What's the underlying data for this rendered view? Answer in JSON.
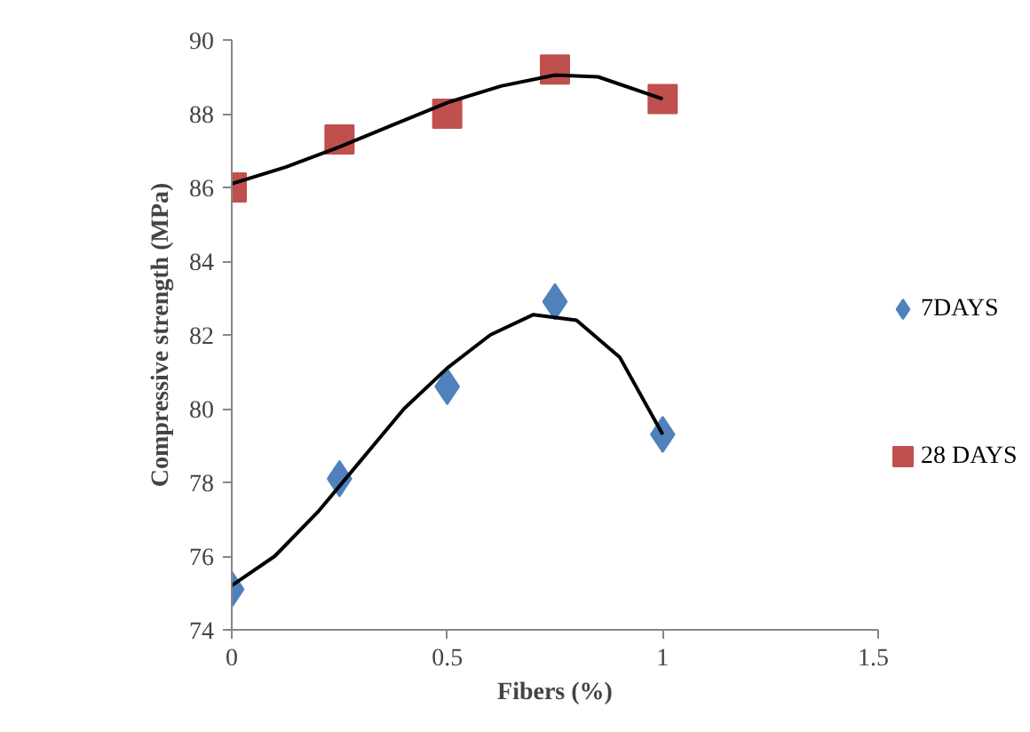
{
  "chart_data": {
    "type": "scatter",
    "xlabel": "Fibers (%)",
    "ylabel": "Compressive strength (MPa)",
    "xlim": [
      0,
      1.5
    ],
    "xticks": [
      0,
      0.5,
      1,
      1.5
    ],
    "ylim": [
      74,
      90
    ],
    "yticks": [
      74,
      76,
      78,
      80,
      82,
      84,
      86,
      88,
      90
    ],
    "grid": false,
    "legend": "right",
    "series": [
      {
        "name": "7DAYS",
        "color": "#4f81bd",
        "marker": "diamond",
        "x": [
          0,
          0.25,
          0.5,
          0.75,
          1
        ],
        "values": [
          75.1,
          78.1,
          80.6,
          82.9,
          79.3
        ]
      },
      {
        "name": "28 DAYS",
        "color": "#c0504d",
        "marker": "square",
        "x": [
          0,
          0.25,
          0.5,
          0.75,
          1
        ],
        "values": [
          86.0,
          87.3,
          88.0,
          89.2,
          88.4
        ]
      },
      {
        "type": "line",
        "color": "#000000",
        "marker": "none",
        "x": [
          0,
          0.1,
          0.2,
          0.3,
          0.4,
          0.5,
          0.6,
          0.7,
          0.8,
          0.9,
          1.0
        ],
        "values": [
          75.2,
          76.0,
          77.2,
          78.6,
          80.0,
          81.1,
          82.0,
          82.55,
          82.4,
          81.4,
          79.3
        ]
      },
      {
        "type": "line",
        "color": "#000000",
        "marker": "none",
        "x": [
          0,
          0.125,
          0.25,
          0.375,
          0.5,
          0.625,
          0.75,
          0.85,
          1.0
        ],
        "values": [
          86.1,
          86.55,
          87.1,
          87.7,
          88.3,
          88.75,
          89.05,
          89.0,
          88.4
        ]
      }
    ]
  }
}
